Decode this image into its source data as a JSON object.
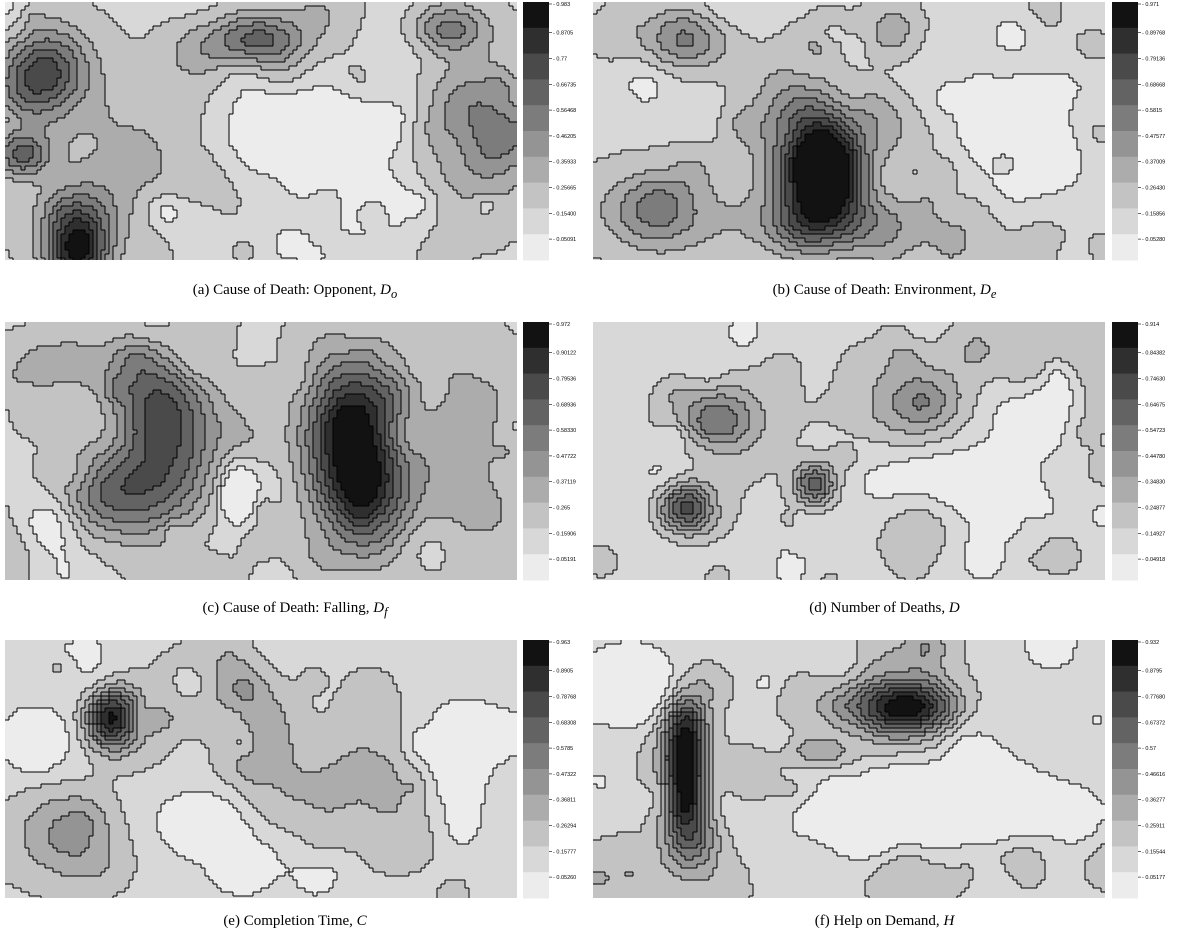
{
  "figure": {
    "panels": [
      {
        "id": "a",
        "caption_prefix": "(a) Cause of Death: Opponent,",
        "caption_symbol": "D",
        "caption_subscript": "o",
        "colorbar_ticks": [
          "0.983",
          "0.8705",
          "0.77",
          "0.66735",
          "0.56468",
          "0.46205",
          "0.35933",
          "0.25665",
          "0.15400",
          "0.05091"
        ]
      },
      {
        "id": "b",
        "caption_prefix": "(b) Cause of Death: Environment,",
        "caption_symbol": "D",
        "caption_subscript": "e",
        "colorbar_ticks": [
          "0.971",
          "0.89768",
          "0.79136",
          "0.68668",
          "0.5815",
          "0.47577",
          "0.37009",
          "0.26430",
          "0.15856",
          "0.05280"
        ]
      },
      {
        "id": "c",
        "caption_prefix": "(c) Cause of Death: Falling,",
        "caption_symbol": "D",
        "caption_subscript": "f",
        "colorbar_ticks": [
          "0.972",
          "0.90122",
          "0.79536",
          "0.68936",
          "0.58330",
          "0.47722",
          "0.37119",
          "0.265",
          "0.15906",
          "0.05191"
        ]
      },
      {
        "id": "d",
        "caption_prefix": "(d) Number of Deaths,",
        "caption_symbol": "D",
        "caption_subscript": "",
        "colorbar_ticks": [
          "0.914",
          "0.84382",
          "0.74630",
          "0.64675",
          "0.54723",
          "0.44780",
          "0.34830",
          "0.24877",
          "0.14927",
          "0.04918"
        ]
      },
      {
        "id": "e",
        "caption_prefix": "(e) Completion Time,",
        "caption_symbol": "C",
        "caption_subscript": "",
        "colorbar_ticks": [
          "0.963",
          "0.8905",
          "0.78768",
          "0.68308",
          "0.5785",
          "0.47322",
          "0.36811",
          "0.26294",
          "0.15777",
          "0.05260"
        ]
      },
      {
        "id": "f",
        "caption_prefix": "(f) Help on Demand,",
        "caption_symbol": "H",
        "caption_subscript": "",
        "colorbar_ticks": [
          "0.932",
          "0.8795",
          "0.77680",
          "0.67372",
          "0.57",
          "0.46616",
          "0.36277",
          "0.25911",
          "0.15544",
          "0.05177"
        ]
      }
    ],
    "colors": {
      "levels": [
        "#ececec",
        "#d8d8d8",
        "#c3c3c3",
        "#acacac",
        "#949494",
        "#7c7c7c",
        "#636363",
        "#4a4a4a",
        "#2f2f2f",
        "#121212"
      ],
      "contour_line": "#000000"
    }
  }
}
